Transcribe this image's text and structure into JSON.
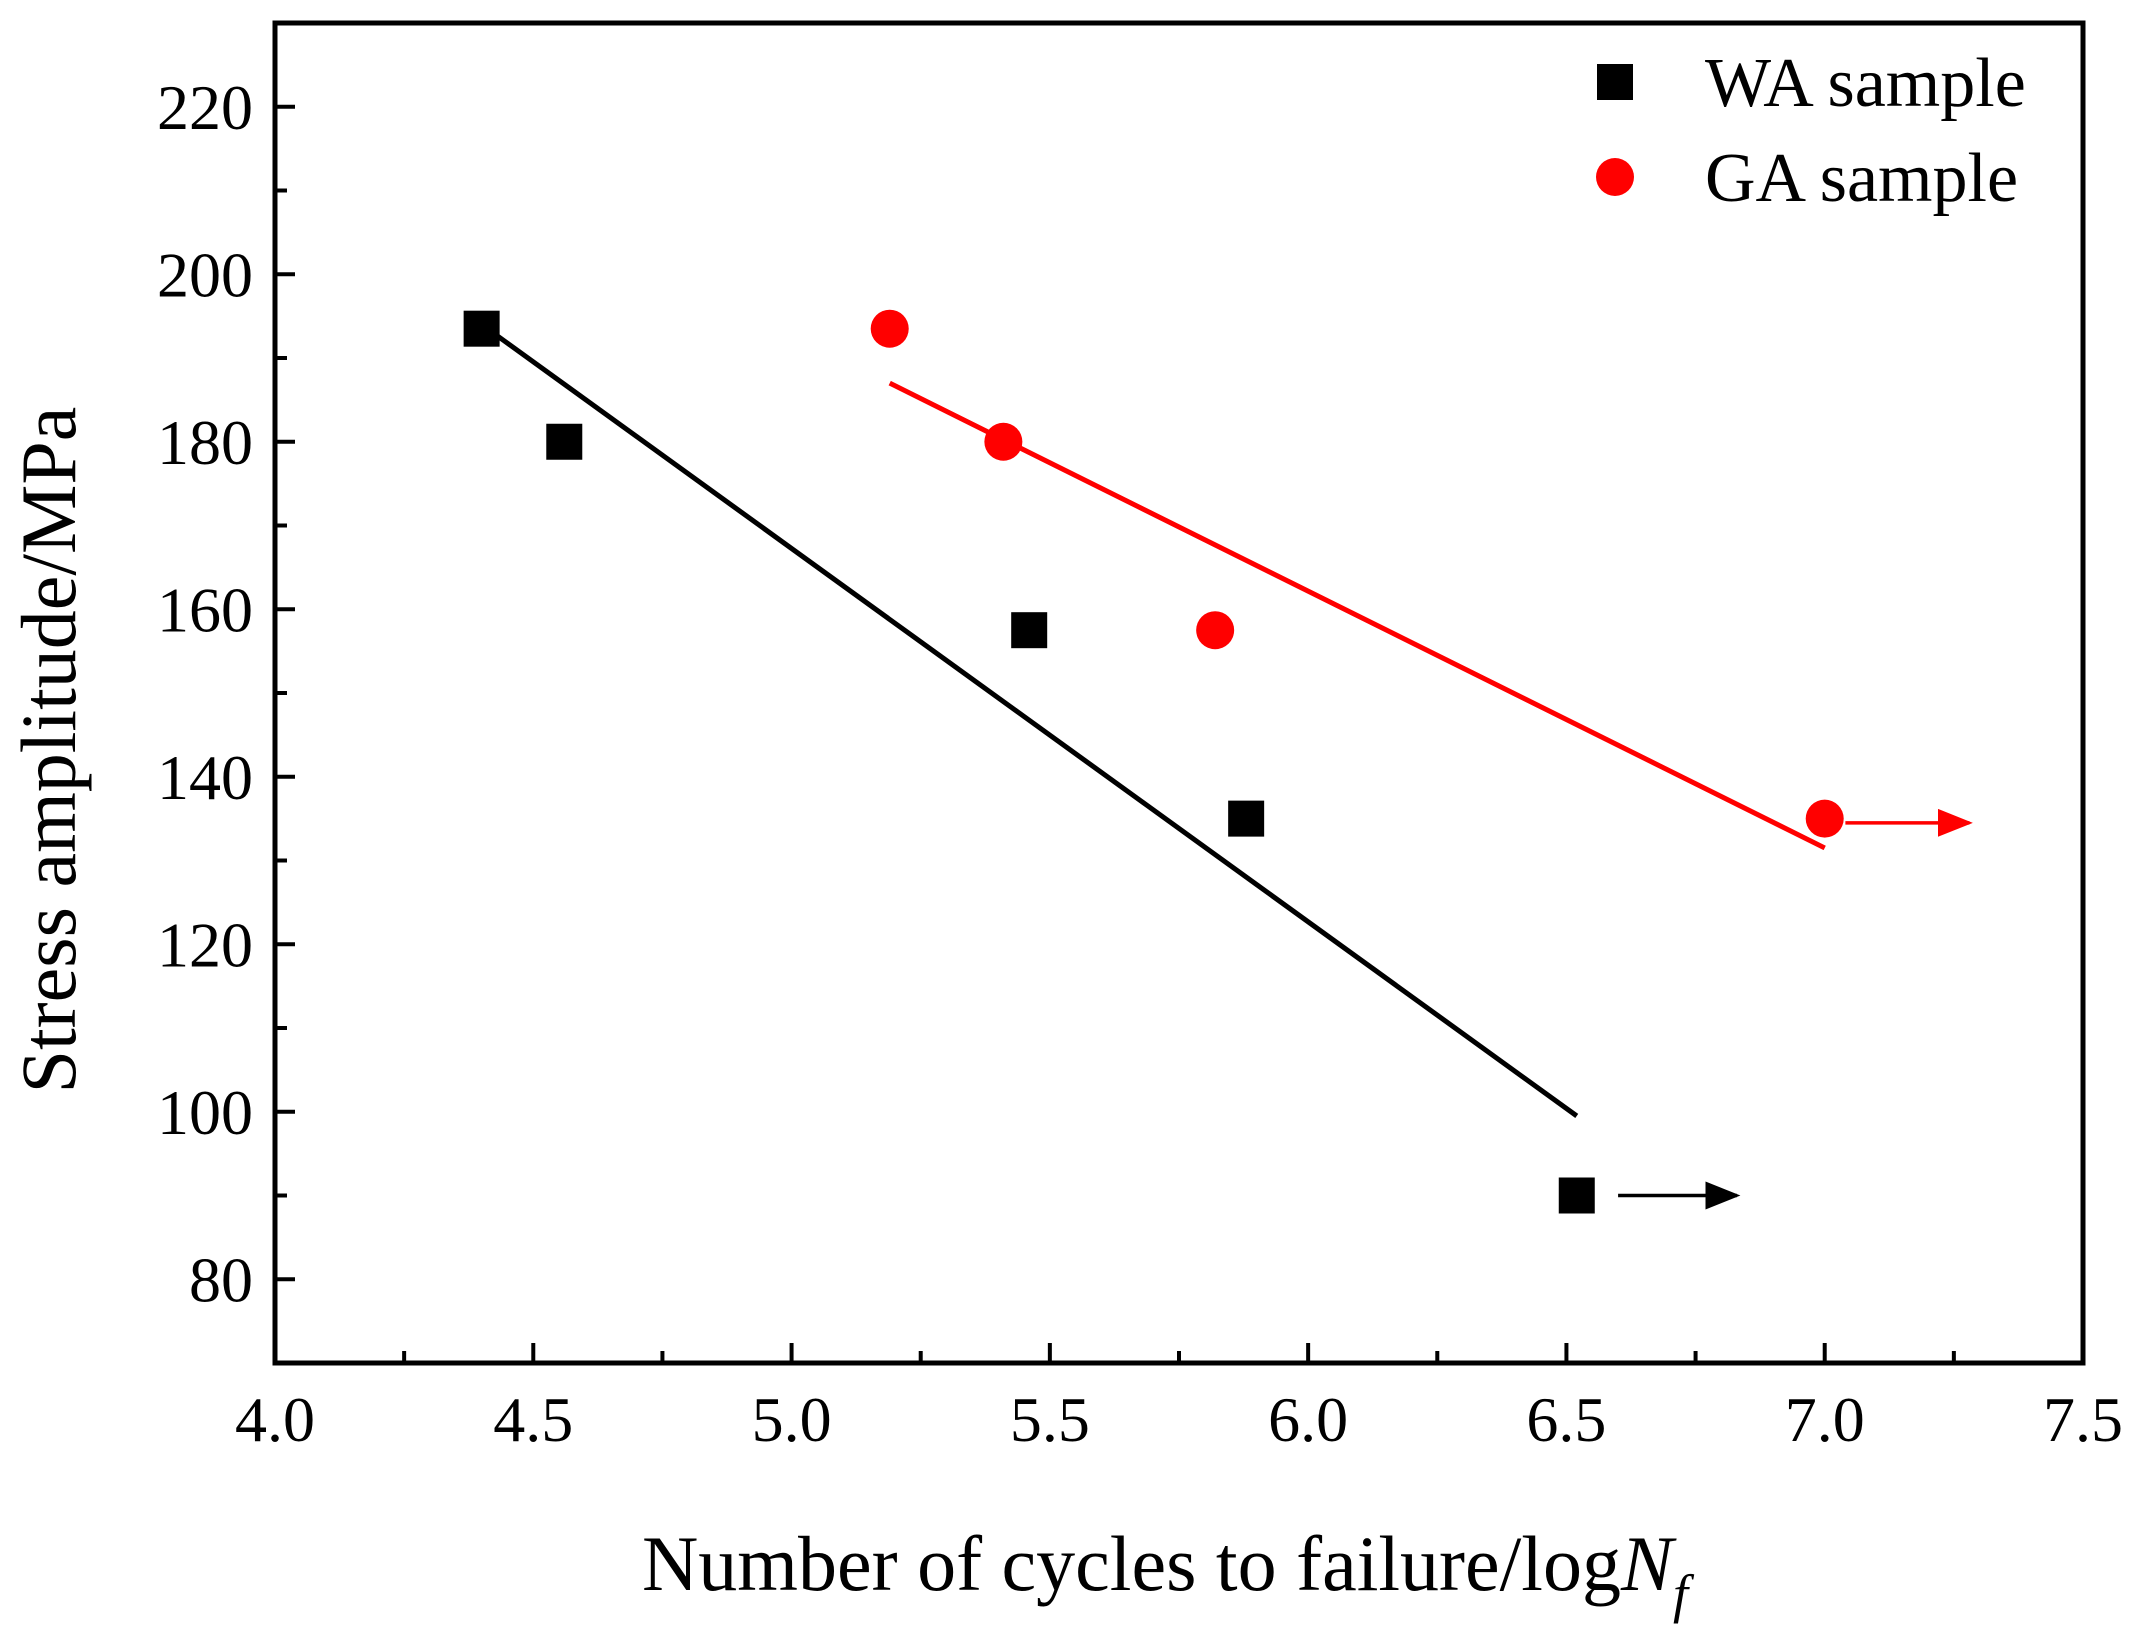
{
  "chart_data": {
    "type": "scatter",
    "title": "",
    "xlabel": "Number of cycles to failure/log",
    "xlabel_var": "N",
    "xlabel_sub": "f",
    "ylabel": "Stress amplitude/MPa",
    "xlim": [
      4.0,
      7.5
    ],
    "ylim": [
      70,
      230
    ],
    "xticks": [
      "4.0",
      "4.5",
      "5.0",
      "5.5",
      "6.0",
      "6.5",
      "7.0",
      "7.5"
    ],
    "yticks": [
      "80",
      "100",
      "120",
      "140",
      "160",
      "180",
      "200",
      "220"
    ],
    "legend_position": "top-right",
    "series": [
      {
        "name": "WA sample",
        "marker": "square",
        "color": "#000000",
        "x": [
          4.4,
          4.56,
          5.46,
          5.88,
          6.52
        ],
        "y": [
          193.5,
          180,
          157.5,
          135,
          90
        ],
        "fit": {
          "x": [
            4.4,
            6.52
          ],
          "y": [
            194,
            99.5
          ]
        },
        "runout": {
          "x_start": 6.6,
          "x_end": 6.83,
          "y": 90
        }
      },
      {
        "name": "GA sample",
        "marker": "circle",
        "color": "#ff0000",
        "x": [
          5.19,
          5.41,
          5.82,
          7.0
        ],
        "y": [
          193.5,
          180,
          157.5,
          135
        ],
        "fit": {
          "x": [
            5.19,
            7.0
          ],
          "y": [
            187,
            131.5
          ]
        },
        "runout": {
          "x_start": 7.04,
          "x_end": 7.28,
          "y": 134.5
        }
      }
    ]
  }
}
